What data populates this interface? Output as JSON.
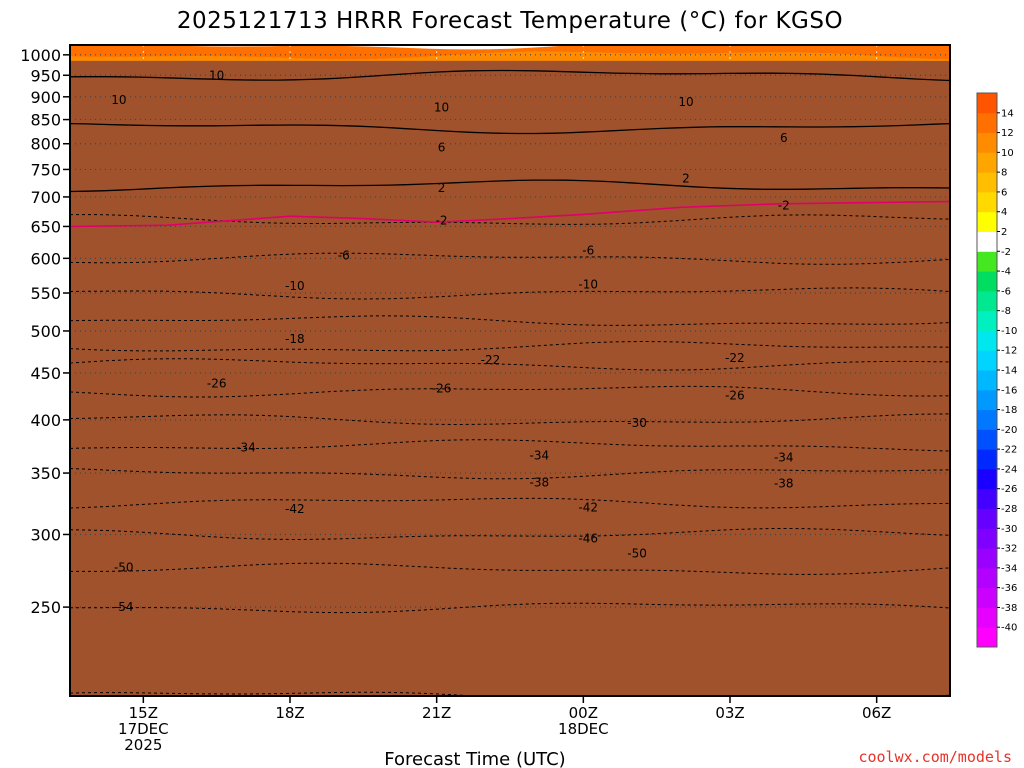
{
  "chart_data": {
    "type": "contour",
    "title": "2025121713 HRRR Forecast Temperature (°C) for KGSO",
    "xlabel": "Forecast Time (UTC)",
    "ylabel": "",
    "credit": "coolwx.com/models",
    "x_ticks": [
      {
        "hour": 2,
        "lines": [
          "15Z",
          "17DEC",
          "2025"
        ]
      },
      {
        "hour": 5,
        "lines": [
          "18Z"
        ]
      },
      {
        "hour": 8,
        "lines": [
          "21Z"
        ]
      },
      {
        "hour": 11,
        "lines": [
          "00Z",
          "18DEC"
        ]
      },
      {
        "hour": 14,
        "lines": [
          "03Z"
        ]
      },
      {
        "hour": 17,
        "lines": [
          "06Z"
        ]
      }
    ],
    "xlim_hours": [
      0.5,
      18.5
    ],
    "y_scale": "log",
    "ylim_hpa": [
      1025,
      200
    ],
    "y_ticks": [
      250,
      300,
      350,
      400,
      450,
      500,
      550,
      600,
      650,
      700,
      750,
      800,
      850,
      900,
      950,
      1000
    ],
    "surface_pressure_hpa": 985,
    "colorbar": {
      "levels": [
        -40,
        -38,
        -36,
        -34,
        -32,
        -30,
        -28,
        -26,
        -24,
        -22,
        -20,
        -18,
        -16,
        -14,
        -12,
        -10,
        -8,
        -6,
        -4,
        -2,
        2,
        4,
        6,
        8,
        10,
        12,
        14
      ],
      "labels": [
        "-40",
        "-38",
        "-36",
        "-34",
        "-32",
        "-30",
        "-28",
        "-26",
        "-24",
        "-22",
        "-20",
        "-18",
        "-16",
        "-14",
        "-12",
        "-10",
        "-8",
        "-6",
        "-4",
        "-2",
        "2",
        "4",
        "6",
        "8",
        "10",
        "12",
        "14"
      ],
      "colors": [
        "#ff00ff",
        "#e600ff",
        "#cc00ff",
        "#b300ff",
        "#9900ff",
        "#8000ff",
        "#6600ff",
        "#4400ff",
        "#1a00ff",
        "#0028ff",
        "#0050ff",
        "#0078ff",
        "#0099ff",
        "#00b8ff",
        "#00d4ff",
        "#00e8ee",
        "#00f0c0",
        "#00e890",
        "#00dd60",
        "#44e820",
        "#ffffff",
        "#ffff00",
        "#ffd900",
        "#ffbf00",
        "#ffa500",
        "#ff8c00",
        "#ff7000",
        "#ff5500"
      ]
    },
    "profile": [
      {
        "p": 1000,
        "t": 12
      },
      {
        "p": 975,
        "t": 11
      },
      {
        "p": 950,
        "t": 10
      },
      {
        "p": 925,
        "t": 9
      },
      {
        "p": 900,
        "t": 8
      },
      {
        "p": 850,
        "t": 6.5
      },
      {
        "p": 800,
        "t": 5
      },
      {
        "p": 775,
        "t": 4
      },
      {
        "p": 750,
        "t": 3
      },
      {
        "p": 720,
        "t": 2
      },
      {
        "p": 690,
        "t": 0
      },
      {
        "p": 660,
        "t": -2
      },
      {
        "p": 630,
        "t": -4
      },
      {
        "p": 600,
        "t": -6
      },
      {
        "p": 575,
        "t": -8
      },
      {
        "p": 550,
        "t": -10
      },
      {
        "p": 525,
        "t": -12
      },
      {
        "p": 500,
        "t": -16
      },
      {
        "p": 480,
        "t": -18
      },
      {
        "p": 460,
        "t": -22
      },
      {
        "p": 430,
        "t": -26
      },
      {
        "p": 400,
        "t": -30
      },
      {
        "p": 375,
        "t": -34
      },
      {
        "p": 350,
        "t": -38
      },
      {
        "p": 325,
        "t": -42
      },
      {
        "p": 300,
        "t": -46
      },
      {
        "p": 275,
        "t": -50
      },
      {
        "p": 250,
        "t": -54
      },
      {
        "p": 200,
        "t": -58
      }
    ],
    "zero_line": [
      {
        "hour": 0.5,
        "p": 650
      },
      {
        "hour": 2.5,
        "p": 652
      },
      {
        "hour": 3.5,
        "p": 658
      },
      {
        "hour": 5,
        "p": 667
      },
      {
        "hour": 6.5,
        "p": 663
      },
      {
        "hour": 8,
        "p": 657
      },
      {
        "hour": 9.5,
        "p": 663
      },
      {
        "hour": 11,
        "p": 670
      },
      {
        "hour": 13,
        "p": 682
      },
      {
        "hour": 15,
        "p": 688
      },
      {
        "hour": 18.5,
        "p": 692
      }
    ],
    "contour_labels": [
      {
        "text": "-54",
        "hour": 1.6,
        "p": 250
      },
      {
        "text": "-50",
        "hour": 1.6,
        "p": 276
      },
      {
        "text": "-50",
        "hour": 12.1,
        "p": 286
      },
      {
        "text": "-46",
        "hour": 11.1,
        "p": 297
      },
      {
        "text": "-42",
        "hour": 5.1,
        "p": 320
      },
      {
        "text": "-42",
        "hour": 11.1,
        "p": 321
      },
      {
        "text": "-38",
        "hour": 10.1,
        "p": 342
      },
      {
        "text": "-38",
        "hour": 15.1,
        "p": 341
      },
      {
        "text": "-34",
        "hour": 4.1,
        "p": 373
      },
      {
        "text": "-34",
        "hour": 10.1,
        "p": 366
      },
      {
        "text": "-34",
        "hour": 15.1,
        "p": 364
      },
      {
        "text": "-30",
        "hour": 12.1,
        "p": 397
      },
      {
        "text": "-26",
        "hour": 3.5,
        "p": 438
      },
      {
        "text": "-26",
        "hour": 8.1,
        "p": 433
      },
      {
        "text": "-26",
        "hour": 14.1,
        "p": 425
      },
      {
        "text": "-22",
        "hour": 9.1,
        "p": 465
      },
      {
        "text": "-22",
        "hour": 14.1,
        "p": 467
      },
      {
        "text": "-18",
        "hour": 5.1,
        "p": 490
      },
      {
        "text": "-10",
        "hour": 5.1,
        "p": 560
      },
      {
        "text": "-10",
        "hour": 11.1,
        "p": 562
      },
      {
        "text": "-6",
        "hour": 6.1,
        "p": 604
      },
      {
        "text": "-6",
        "hour": 11.1,
        "p": 612
      },
      {
        "text": "-2",
        "hour": 8.1,
        "p": 660
      },
      {
        "text": "-2",
        "hour": 15.1,
        "p": 685
      },
      {
        "text": "2",
        "hour": 8.1,
        "p": 716
      },
      {
        "text": "2",
        "hour": 13.1,
        "p": 733
      },
      {
        "text": "6",
        "hour": 8.1,
        "p": 792
      },
      {
        "text": "6",
        "hour": 15.1,
        "p": 812
      },
      {
        "text": "10",
        "hour": 1.5,
        "p": 893
      },
      {
        "text": "10",
        "hour": 3.5,
        "p": 950
      },
      {
        "text": "10",
        "hour": 8.1,
        "p": 876
      },
      {
        "text": "10",
        "hour": 13.1,
        "p": 888
      }
    ]
  }
}
